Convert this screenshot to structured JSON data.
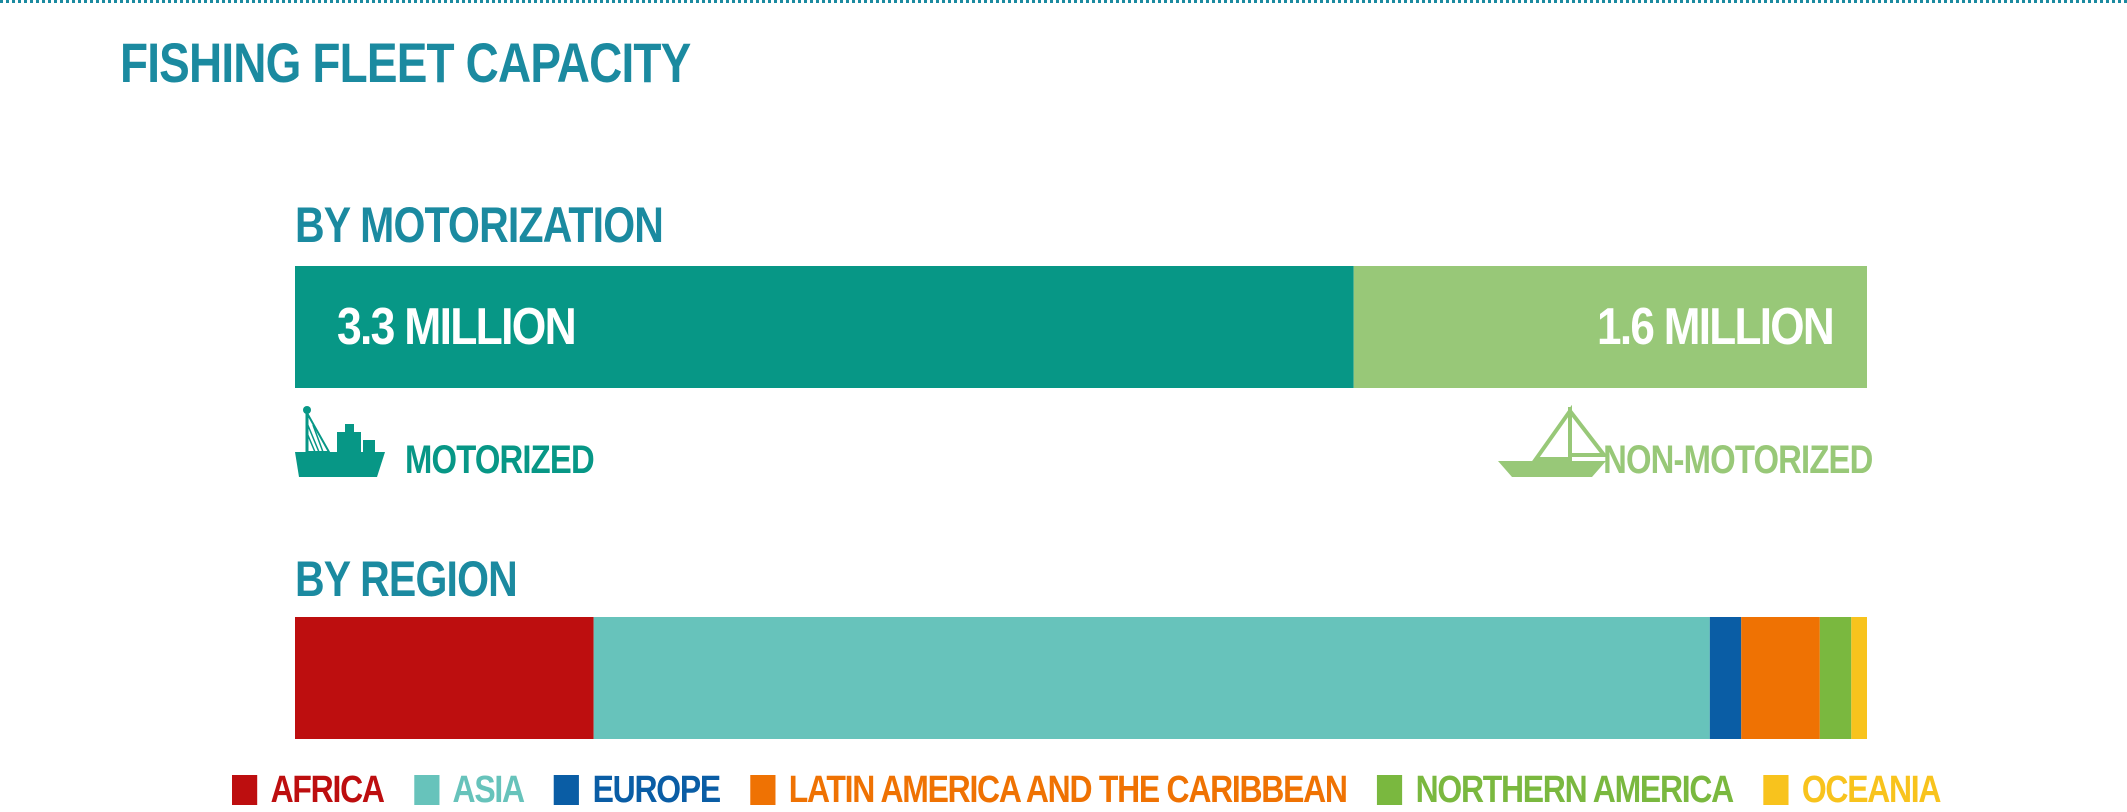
{
  "title": "FISHING FLEET CAPACITY",
  "colors": {
    "title": "#1b8aa0",
    "motorized": "#079786",
    "non_motorized": "#98c878",
    "africa": "#bd0e0f",
    "asia": "#67c3bb",
    "europe": "#0a5da5",
    "latin_america": "#ef7203",
    "northern_america": "#7ab83f",
    "oceania": "#f8c31d"
  },
  "icons": {
    "motorized": "motor-fishing-boat-icon",
    "non_motorized": "sailboat-icon"
  },
  "chart_data": [
    {
      "type": "bar",
      "orientation": "horizontal-stacked",
      "title": "BY MOTORIZATION",
      "series": [
        {
          "name": "MOTORIZED",
          "value": 3.3,
          "value_label": "3.3 MILLION",
          "unit": "million vessels"
        },
        {
          "name": "NON-MOTORIZED",
          "value": 1.6,
          "value_label": "1.6 MILLION",
          "unit": "million vessels"
        }
      ]
    },
    {
      "type": "bar",
      "orientation": "horizontal-stacked",
      "title": "BY REGION",
      "unit": "share of vessels (%)",
      "series": [
        {
          "name": "AFRICA",
          "value": 19.0
        },
        {
          "name": "ASIA",
          "value": 71.0
        },
        {
          "name": "EUROPE",
          "value": 2.0
        },
        {
          "name": "LATIN AMERICA AND THE CARIBBEAN",
          "value": 5.0
        },
        {
          "name": "NORTHERN AMERICA",
          "value": 2.0
        },
        {
          "name": "OCEANIA",
          "value": 1.0
        }
      ],
      "legend_position": "bottom"
    }
  ]
}
